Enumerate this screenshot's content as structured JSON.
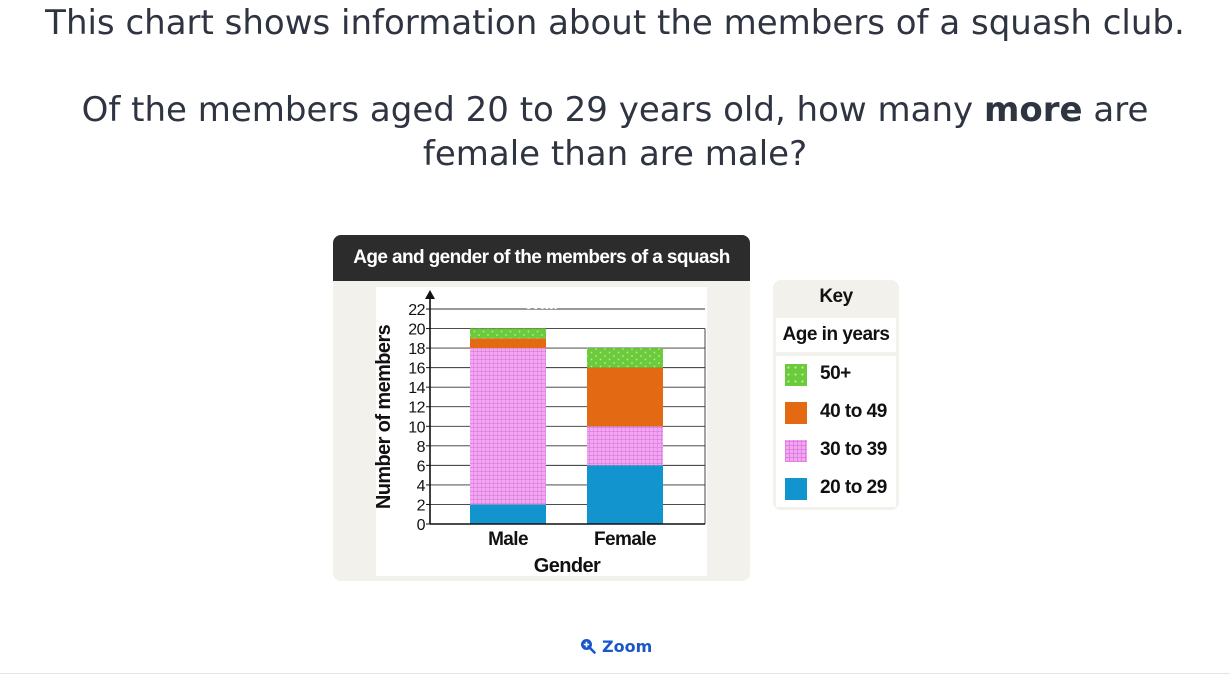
{
  "question": {
    "intro": "This chart shows information about the members of a squash club.",
    "text_before": "Of the members aged 20 to 29 years old, how many ",
    "text_bold": "more",
    "text_after": " are female than are male?"
  },
  "zoom": {
    "label": "Zoom",
    "icon": "zoom-in-icon"
  },
  "key": {
    "title": "Key",
    "subtitle": "Age in years",
    "items": [
      {
        "label": "50+",
        "color": "#6ccb3c",
        "pattern": "dots"
      },
      {
        "label": "40 to 49",
        "color": "#e36a12",
        "pattern": "solid"
      },
      {
        "label": "30 to 39",
        "color": "#f0a8f0",
        "pattern": "grid"
      },
      {
        "label": "20 to 29",
        "color": "#1295cf",
        "pattern": "solid"
      }
    ]
  },
  "chart_data": {
    "type": "bar",
    "stacked": true,
    "title": "Age and gender of the members of a squash club",
    "xlabel": "Gender",
    "ylabel": "Number of members",
    "categories": [
      "Male",
      "Female"
    ],
    "series": [
      {
        "name": "20 to 29",
        "values": [
          2,
          6
        ],
        "color": "#1295cf"
      },
      {
        "name": "30 to 39",
        "values": [
          16,
          4
        ],
        "color": "#f0a8f0"
      },
      {
        "name": "40 to 49",
        "values": [
          1,
          6
        ],
        "color": "#e36a12"
      },
      {
        "name": "50+",
        "values": [
          1,
          2
        ],
        "color": "#6ccb3c"
      }
    ],
    "ylim": [
      0,
      22
    ],
    "yticks": [
      0,
      2,
      4,
      6,
      8,
      10,
      12,
      14,
      16,
      18,
      20,
      22
    ],
    "grid": true,
    "legend": "right"
  }
}
